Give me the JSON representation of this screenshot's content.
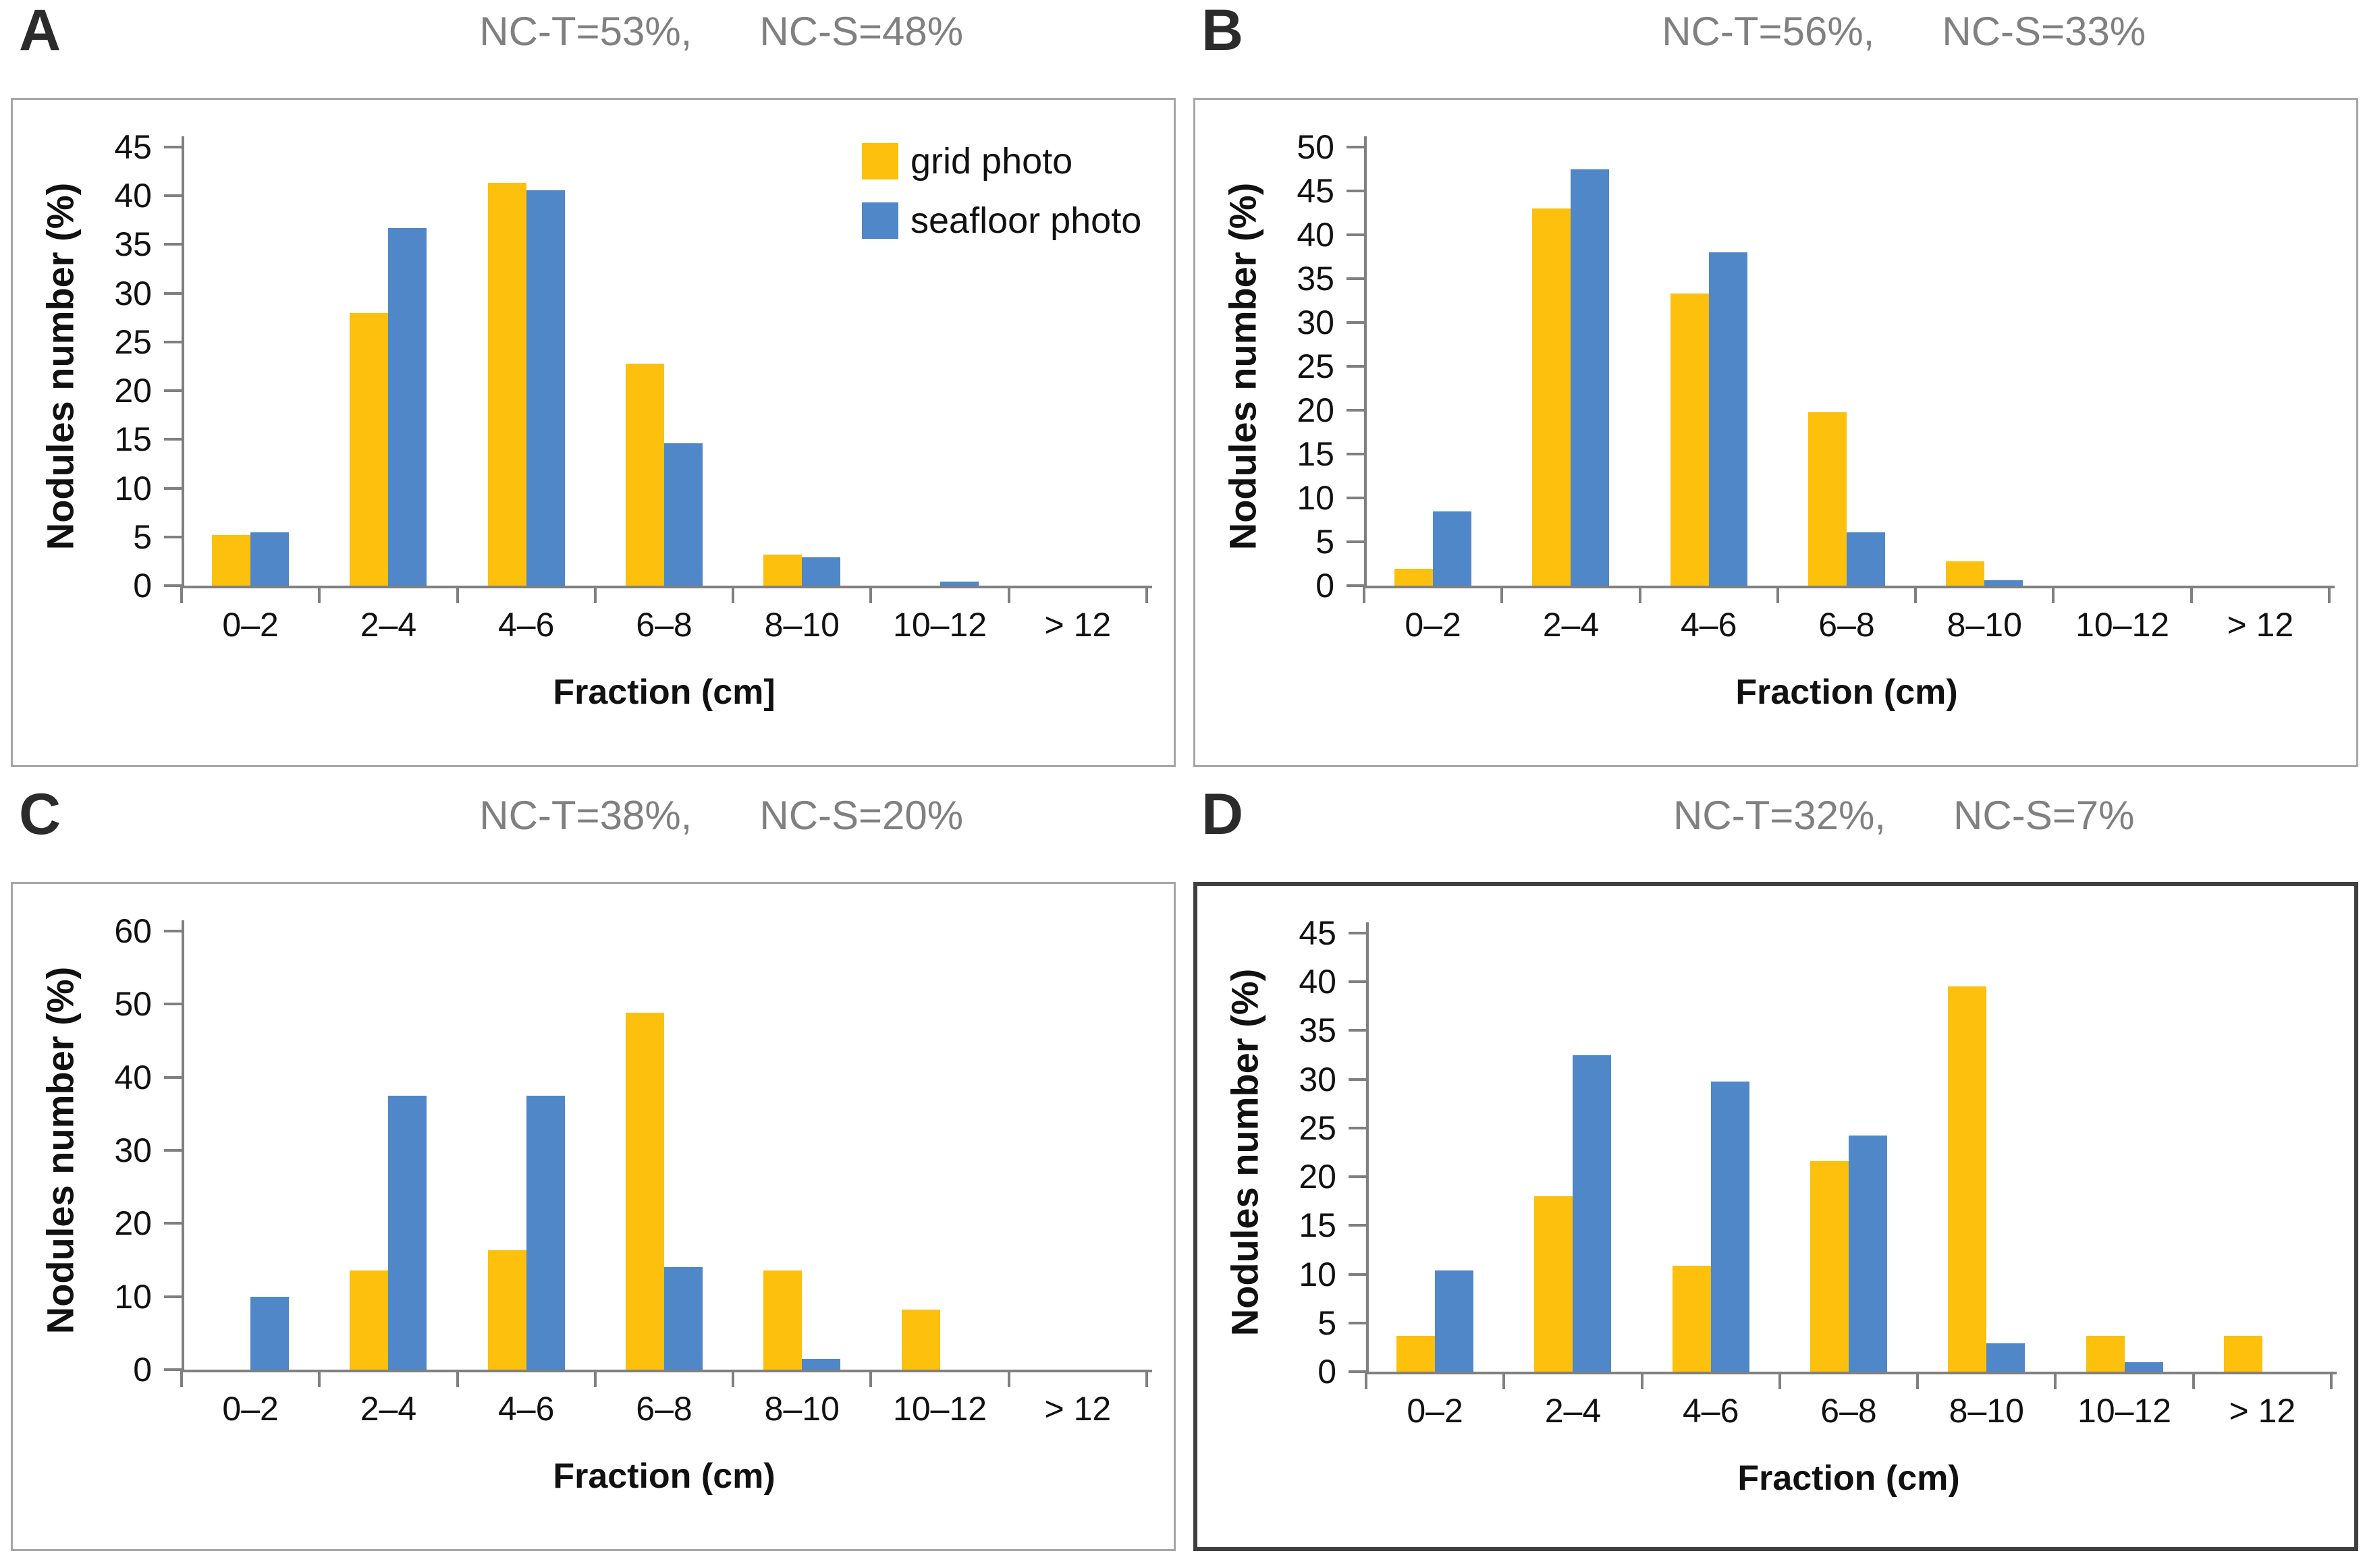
{
  "colors": {
    "grid_photo": "#FCC00D",
    "seafloor_photo": "#4F87C9",
    "axis_gray": "#808080",
    "title_gray": "#808080",
    "border_light": "#A6A6A6",
    "border_dark": "#3F3F3F"
  },
  "legend": {
    "items": [
      {
        "label": "grid photo",
        "color": "#FCC00D"
      },
      {
        "label": "seafloor photo",
        "color": "#4F87C9"
      }
    ]
  },
  "chart_data": [
    {
      "type": "bar",
      "panel_label": "A",
      "title_nc_t": "NC-T=53%,",
      "title_nc_s": "NC-S=48%",
      "ylabel": "Nodules number (%)",
      "xlabel": "Fraction (cm]",
      "categories": [
        "0–2",
        "2–4",
        "4–6",
        "6–8",
        "8–10",
        "10–12",
        "> 12"
      ],
      "series": [
        {
          "name": "grid photo",
          "color": "#FCC00D",
          "values": [
            5.2,
            28.0,
            41.3,
            22.8,
            3.2,
            0,
            0
          ]
        },
        {
          "name": "seafloor photo",
          "color": "#4F87C9",
          "values": [
            5.5,
            36.7,
            40.6,
            14.6,
            2.9,
            0.4,
            0
          ]
        }
      ],
      "ylim": [
        0,
        45
      ],
      "ytick_step": 5,
      "grid": false,
      "legend_visible": true,
      "legend_position": "top-right",
      "border": "light"
    },
    {
      "type": "bar",
      "panel_label": "B",
      "title_nc_t": "NC-T=56%,",
      "title_nc_s": "NC-S=33%",
      "ylabel": "Nodules number (%)",
      "xlabel": "Fraction (cm)",
      "categories": [
        "0–2",
        "2–4",
        "4–6",
        "6–8",
        "8–10",
        "10–12",
        "> 12"
      ],
      "series": [
        {
          "name": "grid photo",
          "color": "#FCC00D",
          "values": [
            1.9,
            43.0,
            33.3,
            19.8,
            2.8,
            0,
            0
          ]
        },
        {
          "name": "seafloor photo",
          "color": "#4F87C9",
          "values": [
            8.5,
            47.5,
            38.0,
            6.1,
            0.6,
            0,
            0
          ]
        }
      ],
      "ylim": [
        0,
        50
      ],
      "ytick_step": 5,
      "grid": false,
      "legend_visible": false,
      "border": "light"
    },
    {
      "type": "bar",
      "panel_label": "C",
      "title_nc_t": "NC-T=38%,",
      "title_nc_s": "NC-S=20%",
      "ylabel": "Nodules number (%)",
      "xlabel": "Fraction (cm)",
      "categories": [
        "0–2",
        "2–4",
        "4–6",
        "6–8",
        "8–10",
        "10–12",
        "> 12"
      ],
      "series": [
        {
          "name": "grid photo",
          "color": "#FCC00D",
          "values": [
            0,
            13.6,
            16.3,
            48.8,
            13.6,
            8.2,
            0
          ]
        },
        {
          "name": "seafloor photo",
          "color": "#4F87C9",
          "values": [
            10.0,
            37.5,
            37.5,
            14.0,
            1.5,
            0,
            0
          ]
        }
      ],
      "ylim": [
        0,
        60
      ],
      "ytick_step": 10,
      "grid": false,
      "legend_visible": false,
      "border": "light"
    },
    {
      "type": "bar",
      "panel_label": "D",
      "title_nc_t": "NC-T=32%,",
      "title_nc_s": "NC-S=7%",
      "ylabel": "Nodules number (%)",
      "xlabel": "Fraction (cm)",
      "categories": [
        "0–2",
        "2–4",
        "4–6",
        "6–8",
        "8–10",
        "10–12",
        "> 12"
      ],
      "series": [
        {
          "name": "grid photo",
          "color": "#FCC00D",
          "values": [
            3.7,
            18.0,
            10.9,
            21.6,
            39.5,
            3.7,
            3.7
          ]
        },
        {
          "name": "seafloor photo",
          "color": "#4F87C9",
          "values": [
            10.4,
            32.5,
            29.8,
            24.2,
            2.9,
            1.0,
            0
          ]
        }
      ],
      "ylim": [
        0,
        45
      ],
      "ytick_step": 5,
      "grid": false,
      "legend_visible": false,
      "border": "dark"
    }
  ]
}
